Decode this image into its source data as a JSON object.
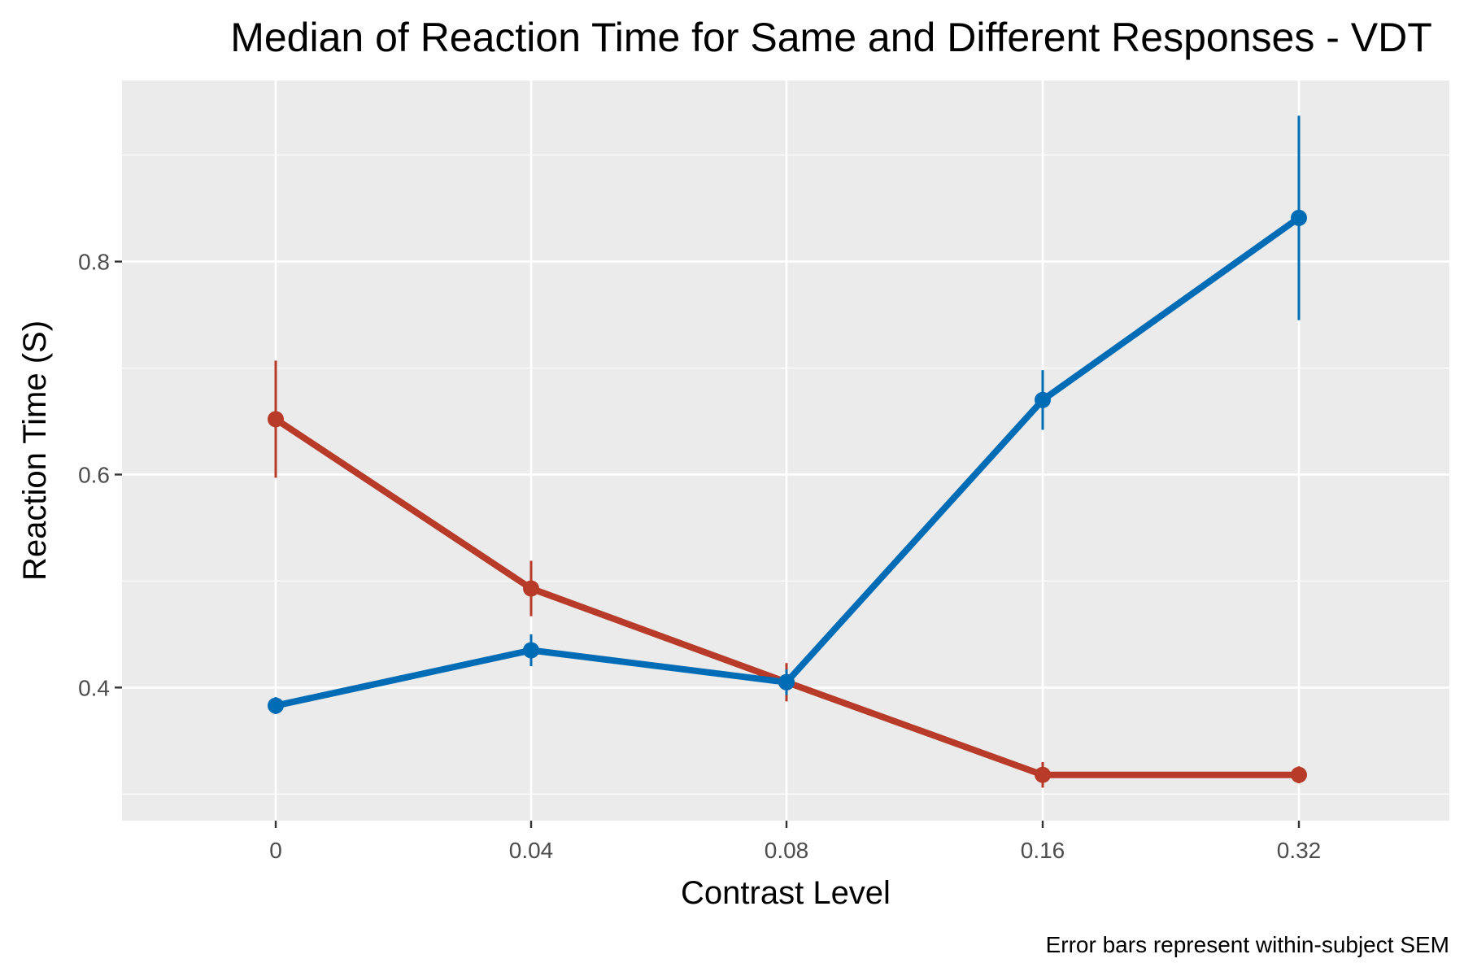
{
  "chart_data": {
    "type": "line",
    "title": "Median of Reaction Time for Same and Different Responses - VDT",
    "xlabel": "Contrast Level",
    "ylabel": "Reaction Time (S)",
    "caption": "Error bars represent within-subject SEM",
    "categories": [
      "0",
      "0.04",
      "0.08",
      "0.16",
      "0.32"
    ],
    "y_ticks": [
      "0.4",
      "0.6",
      "0.8"
    ],
    "ylim": [
      0.275,
      0.97
    ],
    "grid": true,
    "legend": "none",
    "series": [
      {
        "color": "#B83A28",
        "values": [
          0.652,
          0.493,
          0.405,
          0.318,
          0.318
        ],
        "error": [
          0.055,
          0.026,
          0.018,
          0.012,
          0.008
        ]
      },
      {
        "color": "#006CB5",
        "values": [
          0.383,
          0.435,
          0.405,
          0.67,
          0.841
        ],
        "error": [
          0.008,
          0.015,
          0.012,
          0.028,
          0.096
        ]
      }
    ]
  },
  "colors": {
    "panel_background": "#EBEBEB",
    "grid_line": "#FFFFFF",
    "tick_color": "#333333"
  }
}
